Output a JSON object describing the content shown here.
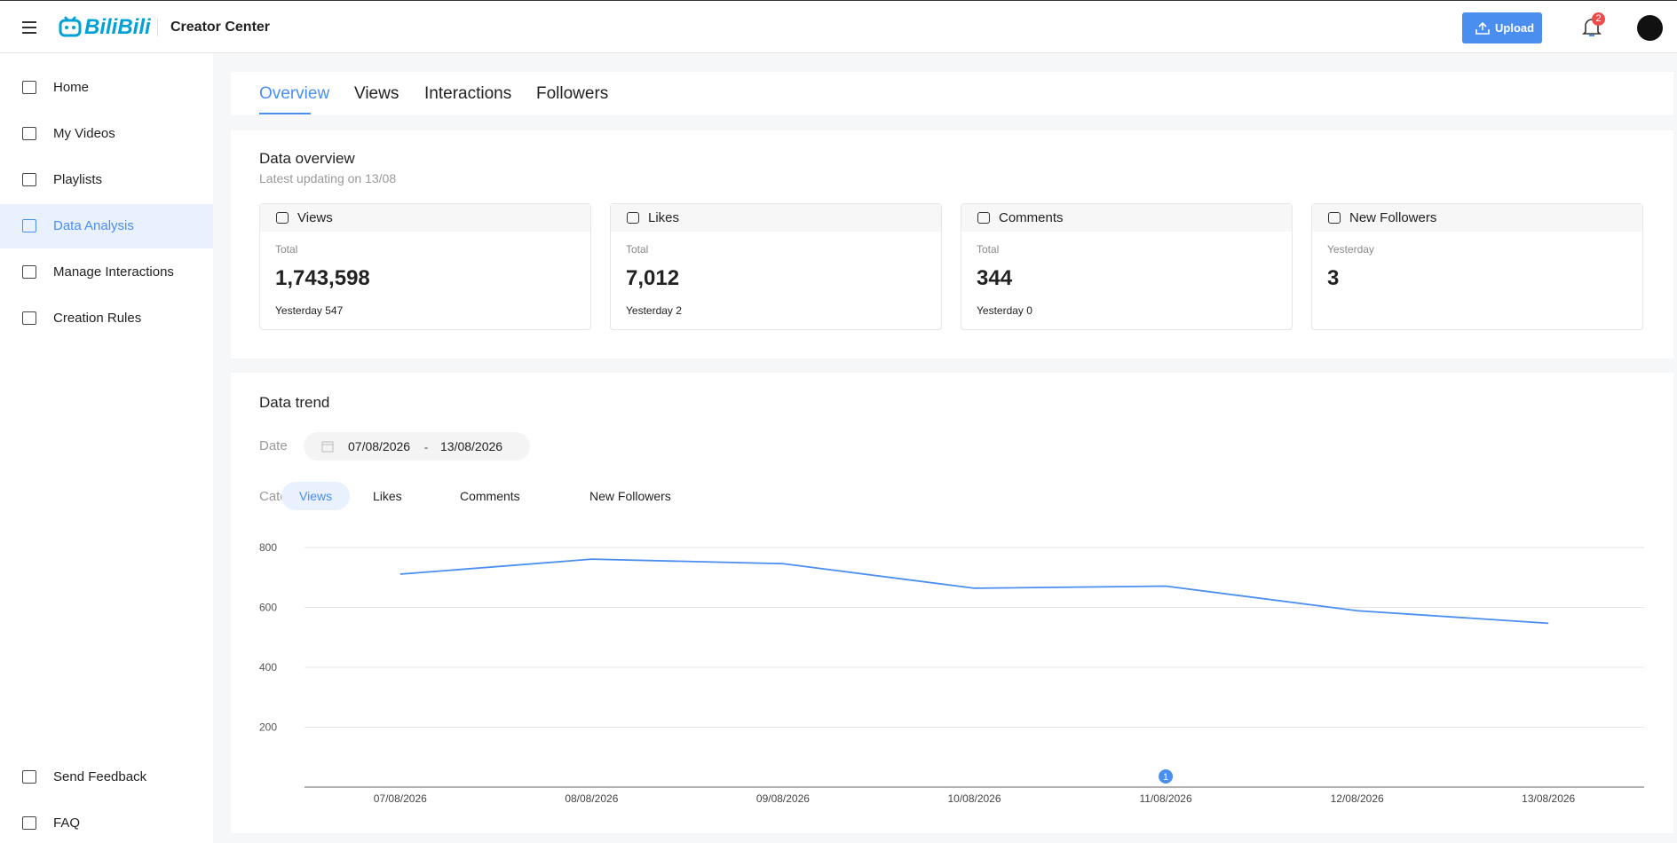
{
  "header": {
    "logo": "BiliBili",
    "title": "Creator Center",
    "upload": "Upload",
    "notifications": "2"
  },
  "sidebar": {
    "items": [
      "Home",
      "My Videos",
      "Playlists",
      "Data Analysis",
      "Manage Interactions",
      "Creation Rules"
    ],
    "active": 3,
    "bottom": [
      "Send Feedback",
      "FAQ"
    ]
  },
  "tabs": {
    "items": [
      "Overview",
      "Views",
      "Interactions",
      "Followers"
    ],
    "active": 0
  },
  "overview": {
    "title": "Data overview",
    "subtitle": "Latest updating on 13/08",
    "cards": [
      {
        "name": "Views",
        "period": "Total",
        "value": "1,743,598",
        "yesterday": "Yesterday 547"
      },
      {
        "name": "Likes",
        "period": "Total",
        "value": "7,012",
        "yesterday": "Yesterday 2"
      },
      {
        "name": "Comments",
        "period": "Total",
        "value": "344",
        "yesterday": "Yesterday 0"
      },
      {
        "name": "New Followers",
        "period": "Yesterday",
        "value": "3"
      }
    ]
  },
  "trend": {
    "title": "Data trend",
    "date_label": "Date",
    "start": "07/08/2026",
    "separator": "-",
    "end": "13/08/2026",
    "category_label": "Category",
    "categories": [
      "Views",
      "Likes",
      "Comments",
      "New Followers"
    ],
    "active": 0,
    "chart": {
      "type": "line",
      "categories": [
        "07/08/2026",
        "08/08/2026",
        "09/08/2026",
        "10/08/2026",
        "11/08/2026",
        "12/08/2026",
        "13/08/2026"
      ],
      "values": [
        711,
        761,
        746,
        664,
        671,
        589,
        547
      ],
      "color": "#4a8ff0",
      "ylim": [
        0,
        800
      ],
      "yticks": [
        200,
        400,
        600,
        800
      ],
      "grid": true,
      "marker": {
        "index": 4,
        "label": "1"
      }
    }
  }
}
